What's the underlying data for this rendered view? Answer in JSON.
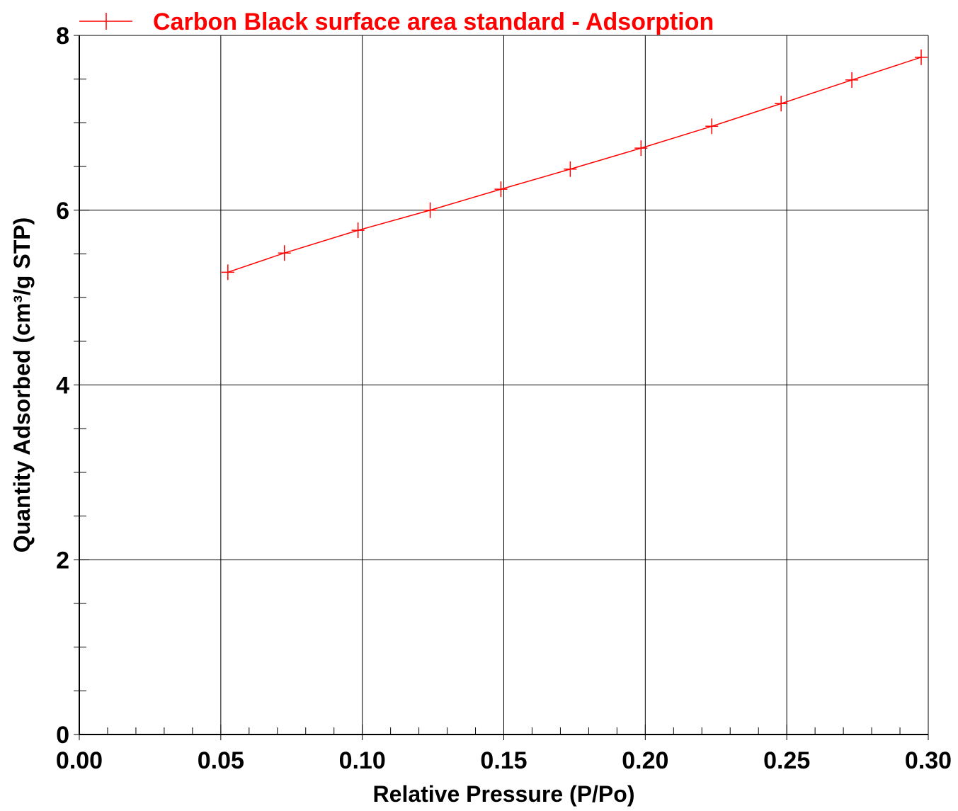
{
  "chart_data": {
    "type": "line",
    "title": "",
    "xlabel": "Relative Pressure (P/Po)",
    "ylabel": "Quantity Adsorbed (cm³/g STP)",
    "xlim": [
      0,
      0.3
    ],
    "ylim": [
      0,
      8
    ],
    "grid": true,
    "legend_position": "top",
    "x_ticks": [
      "0.00",
      "0.05",
      "0.10",
      "0.15",
      "0.20",
      "0.25",
      "0.30"
    ],
    "y_ticks": [
      "0",
      "2",
      "4",
      "6",
      "8"
    ],
    "series": [
      {
        "name": "Carbon Black surface area standard - Adsorption",
        "color": "#ff0000",
        "marker": "plus",
        "x": [
          0.0525,
          0.0725,
          0.0985,
          0.124,
          0.149,
          0.1735,
          0.1985,
          0.2235,
          0.248,
          0.273,
          0.2975
        ],
        "y": [
          5.29,
          5.51,
          5.77,
          6.0,
          6.24,
          6.47,
          6.71,
          6.96,
          7.22,
          7.49,
          7.75
        ]
      }
    ]
  }
}
